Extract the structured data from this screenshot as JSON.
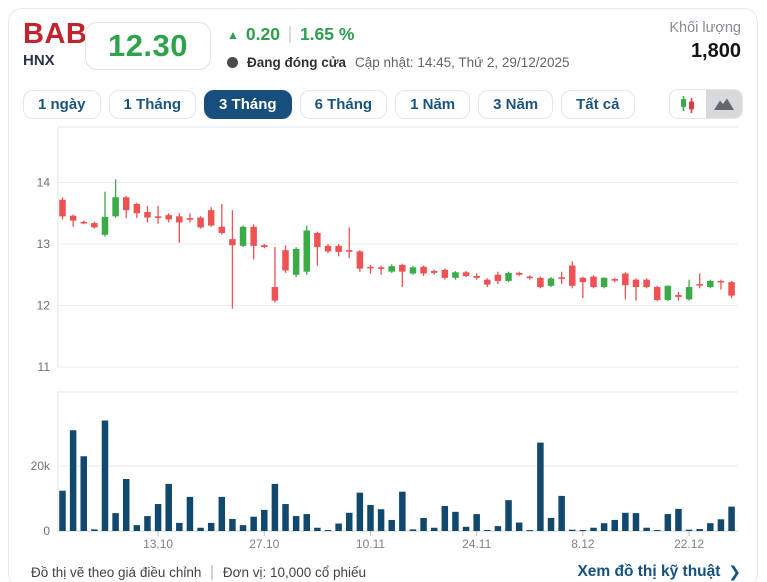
{
  "header": {
    "ticker": "BAB",
    "exchange": "HNX",
    "price": "12.30",
    "change": "0.20",
    "change_percent": "1.65 %",
    "market_status": "Đang đóng cửa",
    "updated": "Cập nhật: 14:45, Thứ 2, 29/12/2025",
    "volume_label": "Khối lượng",
    "volume_value": "1,800"
  },
  "icons": {
    "up_arrow": "▲",
    "chevron_right": "❯"
  },
  "toolbar": {
    "ranges": [
      {
        "label": "1 ngày",
        "active": false
      },
      {
        "label": "1 Tháng",
        "active": false
      },
      {
        "label": "3 Tháng",
        "active": true
      },
      {
        "label": "6 Tháng",
        "active": false
      },
      {
        "label": "1 Năm",
        "active": false
      },
      {
        "label": "3 Năm",
        "active": false
      },
      {
        "label": "Tất cả",
        "active": false
      }
    ],
    "chart_types": [
      {
        "name": "candlestick",
        "active": false
      },
      {
        "name": "area",
        "active": true
      }
    ]
  },
  "footer": {
    "note_adjusted": "Đồ thị vẽ theo giá điều chỉnh",
    "note_unit": "Đơn vị: 10,000 cổ phiếu",
    "link_label": "Xem đồ thị kỹ thuật"
  },
  "chart_data": {
    "type": "candlestick+volume",
    "title": "BAB 3-month price and volume chart",
    "price_axis": {
      "ticks": [
        14,
        13,
        12,
        11
      ],
      "min": 11,
      "max": 14.9
    },
    "volume_axis": {
      "ticks": [
        {
          "value": 20,
          "label": "20k"
        },
        {
          "value": 0,
          "label": "0"
        }
      ],
      "unit": "thousand shares (x10,000 cổ phiếu)"
    },
    "x_ticks": [
      {
        "index": 9,
        "label": "13.10"
      },
      {
        "index": 19,
        "label": "27.10"
      },
      {
        "index": 29,
        "label": "10.11"
      },
      {
        "index": 39,
        "label": "24.11"
      },
      {
        "index": 49,
        "label": "8.12"
      },
      {
        "index": 59,
        "label": "22.12"
      }
    ],
    "colors": {
      "up": "#3aab47",
      "down": "#ee5253",
      "volume": "#11496e",
      "grid": "#ebedef",
      "axis": "#e3e6e9",
      "baseline": "#ccd0d4",
      "tick_text": "#6d7277",
      "date_text": "#7c8287"
    },
    "candles": [
      [
        13.72,
        13.76,
        13.4,
        13.45
      ],
      [
        13.46,
        13.48,
        13.28,
        13.38
      ],
      [
        13.36,
        13.38,
        13.32,
        13.34
      ],
      [
        13.34,
        13.36,
        13.25,
        13.27
      ],
      [
        13.15,
        13.85,
        13.12,
        13.44
      ],
      [
        13.45,
        14.05,
        13.43,
        13.76
      ],
      [
        13.76,
        13.78,
        13.42,
        13.55
      ],
      [
        13.65,
        13.67,
        13.42,
        13.5
      ],
      [
        13.52,
        13.62,
        13.35,
        13.43
      ],
      [
        13.45,
        13.62,
        13.33,
        13.44
      ],
      [
        13.47,
        13.5,
        13.35,
        13.4
      ],
      [
        13.45,
        13.5,
        13.02,
        13.35
      ],
      [
        13.42,
        13.5,
        13.35,
        13.4
      ],
      [
        13.43,
        13.45,
        13.25,
        13.27
      ],
      [
        13.55,
        13.6,
        13.28,
        13.3
      ],
      [
        13.28,
        13.65,
        13.15,
        13.18
      ],
      [
        13.08,
        13.55,
        11.95,
        12.98
      ],
      [
        12.97,
        13.3,
        12.95,
        13.28
      ],
      [
        13.28,
        13.32,
        12.75,
        12.97
      ],
      [
        12.98,
        13.0,
        12.93,
        12.95
      ],
      [
        12.3,
        12.95,
        12.05,
        12.08
      ],
      [
        12.9,
        12.98,
        12.53,
        12.57
      ],
      [
        12.5,
        12.95,
        12.46,
        12.92
      ],
      [
        12.55,
        13.3,
        12.5,
        13.22
      ],
      [
        13.18,
        13.2,
        12.65,
        12.95
      ],
      [
        12.97,
        13.0,
        12.85,
        12.88
      ],
      [
        12.97,
        13.0,
        12.8,
        12.87
      ],
      [
        12.9,
        13.27,
        12.77,
        12.88
      ],
      [
        12.88,
        12.9,
        12.55,
        12.6
      ],
      [
        12.63,
        12.66,
        12.52,
        12.61
      ],
      [
        12.62,
        12.65,
        12.5,
        12.6
      ],
      [
        12.55,
        12.67,
        12.53,
        12.64
      ],
      [
        12.66,
        12.68,
        12.3,
        12.55
      ],
      [
        12.52,
        12.64,
        12.5,
        12.62
      ],
      [
        12.63,
        12.65,
        12.48,
        12.52
      ],
      [
        12.56,
        12.58,
        12.5,
        12.53
      ],
      [
        12.58,
        12.6,
        12.42,
        12.45
      ],
      [
        12.45,
        12.56,
        12.42,
        12.54
      ],
      [
        12.54,
        12.56,
        12.46,
        12.48
      ],
      [
        12.48,
        12.52,
        12.42,
        12.45
      ],
      [
        12.42,
        12.44,
        12.3,
        12.34
      ],
      [
        12.5,
        12.55,
        12.35,
        12.4
      ],
      [
        12.4,
        12.55,
        12.38,
        12.53
      ],
      [
        12.53,
        12.55,
        12.48,
        12.5
      ],
      [
        12.47,
        12.49,
        12.42,
        12.45
      ],
      [
        12.45,
        12.47,
        12.28,
        12.3
      ],
      [
        12.32,
        12.46,
        12.3,
        12.44
      ],
      [
        12.46,
        12.55,
        12.35,
        12.44
      ],
      [
        12.65,
        12.72,
        12.28,
        12.32
      ],
      [
        12.45,
        12.47,
        12.12,
        12.38
      ],
      [
        12.47,
        12.49,
        12.28,
        12.3
      ],
      [
        12.3,
        12.46,
        12.28,
        12.45
      ],
      [
        12.43,
        12.45,
        12.38,
        12.41
      ],
      [
        12.52,
        12.54,
        12.1,
        12.33
      ],
      [
        12.42,
        12.44,
        12.08,
        12.3
      ],
      [
        12.42,
        12.44,
        12.28,
        12.3
      ],
      [
        12.3,
        12.32,
        12.07,
        12.09
      ],
      [
        12.09,
        12.33,
        12.07,
        12.32
      ],
      [
        12.17,
        12.22,
        12.08,
        12.14
      ],
      [
        12.1,
        12.42,
        12.08,
        12.3
      ],
      [
        12.35,
        12.52,
        12.28,
        12.33
      ],
      [
        12.3,
        12.42,
        12.28,
        12.4
      ],
      [
        12.4,
        12.42,
        12.26,
        12.38
      ],
      [
        12.38,
        12.4,
        12.12,
        12.16
      ]
    ],
    "volumes": [
      12.4,
      31,
      23,
      0.5,
      34,
      5.5,
      16,
      1.8,
      4.6,
      8.3,
      14.5,
      2.5,
      10.5,
      1,
      2.5,
      10.5,
      3.7,
      1.8,
      4.4,
      6.5,
      14.5,
      8.3,
      4.6,
      5.2,
      1,
      0.3,
      2.3,
      5.6,
      11.8,
      8,
      6.7,
      3.4,
      12.1,
      0.5,
      4,
      1,
      7.7,
      5.9,
      1.3,
      5.2,
      0.3,
      1.5,
      9.5,
      2.6,
      0.3,
      27.2,
      4,
      10.8,
      0.4,
      0.3,
      1,
      2.4,
      3.4,
      5.6,
      5.5,
      1,
      0.3,
      5.2,
      6.8,
      0.4,
      0.6,
      2.4,
      3.6,
      7.5
    ]
  }
}
